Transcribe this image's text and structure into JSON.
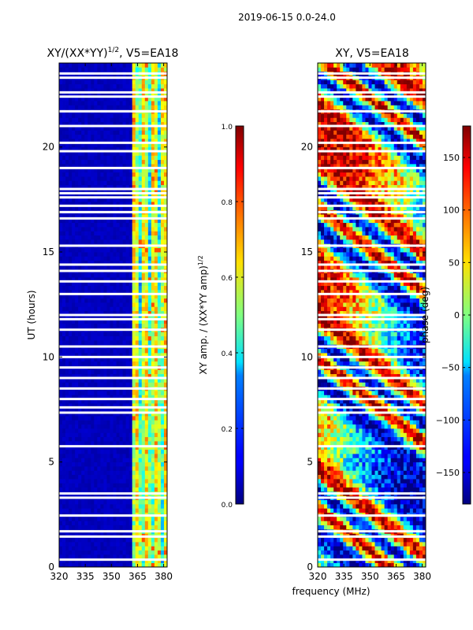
{
  "suptitle": "2019-06-15 0.0-24.0",
  "chart_data": [
    {
      "type": "heatmap",
      "title": "XY/(XX*YY)",
      "title_superscript": "1/2",
      "title_suffix": ", V5=EA18",
      "xlabel": "",
      "ylabel": "UT (hours)",
      "xlim": [
        320,
        382
      ],
      "ylim": [
        0,
        24
      ],
      "xticks": [
        320,
        335,
        350,
        365,
        380
      ],
      "yticks": [
        0,
        5,
        10,
        15,
        20
      ],
      "colorbar": {
        "label": "XY amp. / (XX*YY amp)",
        "label_superscript": "1/2",
        "range": [
          0.0,
          1.0
        ],
        "ticks": [
          "0.0",
          "0.2",
          "0.4",
          "0.6",
          "0.8",
          "1.0"
        ],
        "tick_values": [
          0.0,
          0.2,
          0.4,
          0.6,
          0.8,
          1.0
        ],
        "colormap": "jet"
      },
      "notes": "Normalized amplitude is low (~0.05) below ~362 MHz and elevated (~0.3-0.7) in vertical bands above ~362 MHz; horizontal white gaps mark flagged times."
    },
    {
      "type": "heatmap",
      "title": "XY",
      "title_suffix": ", V5=EA18",
      "xlabel": "frequency (MHz)",
      "ylabel": "",
      "xlim": [
        320,
        382
      ],
      "ylim": [
        0,
        24
      ],
      "xticks": [
        320,
        335,
        350,
        365,
        380
      ],
      "yticks": [
        0,
        5,
        10,
        15,
        20
      ],
      "colorbar": {
        "label": "phase (deg)",
        "range": [
          -180,
          180
        ],
        "ticks": [
          "−150",
          "−100",
          "−50",
          "0",
          "50",
          "100",
          "150"
        ],
        "tick_values": [
          -150,
          -100,
          -50,
          0,
          50,
          100,
          150
        ],
        "colormap": "jet"
      },
      "notes": "XY phase varies over the full -180 to 180 degree range in streaky patterns across frequency and time, with horizontal white gaps at flagged times."
    }
  ],
  "colors": {
    "jet_low": "#00007f",
    "jet_high": "#7f0000",
    "gap": "#ffffff",
    "axis": "#000000"
  }
}
